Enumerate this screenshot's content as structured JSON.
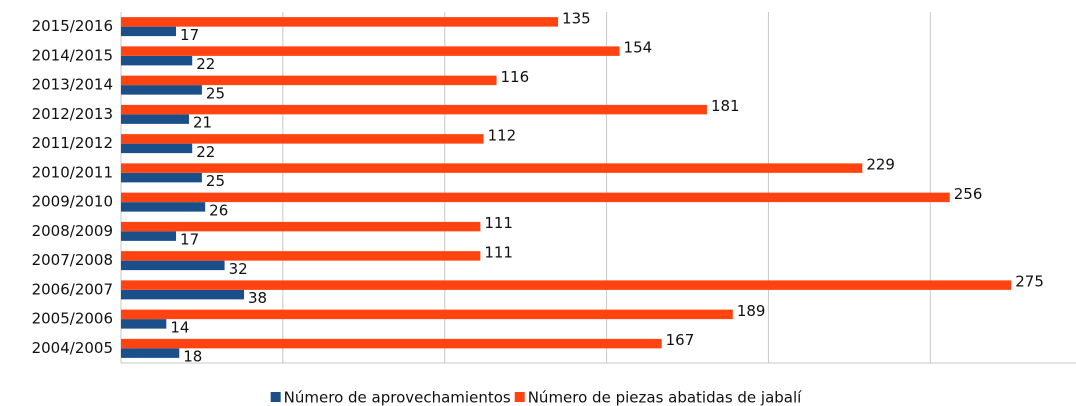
{
  "chart_data": {
    "type": "hbar",
    "categories": [
      "2015/2016",
      "2014/2015",
      "2013/2014",
      "2012/2013",
      "2011/2012",
      "2010/2011",
      "2009/2010",
      "2008/2009",
      "2007/2008",
      "2006/2007",
      "2005/2006",
      "2004/2005"
    ],
    "series": [
      {
        "name": "Número de aprovechamientos",
        "color": "#1a4f8a",
        "values": [
          17,
          22,
          25,
          21,
          22,
          25,
          26,
          17,
          32,
          38,
          14,
          18
        ]
      },
      {
        "name": "Número de piezas abatidas de jabalí",
        "color": "#ff4412",
        "values": [
          135,
          154,
          116,
          181,
          112,
          229,
          256,
          111,
          111,
          275,
          189,
          167
        ]
      }
    ],
    "xlim": [
      0,
      295
    ],
    "xticks": [
      0,
      50,
      100,
      150,
      200,
      250
    ],
    "grid": true
  }
}
